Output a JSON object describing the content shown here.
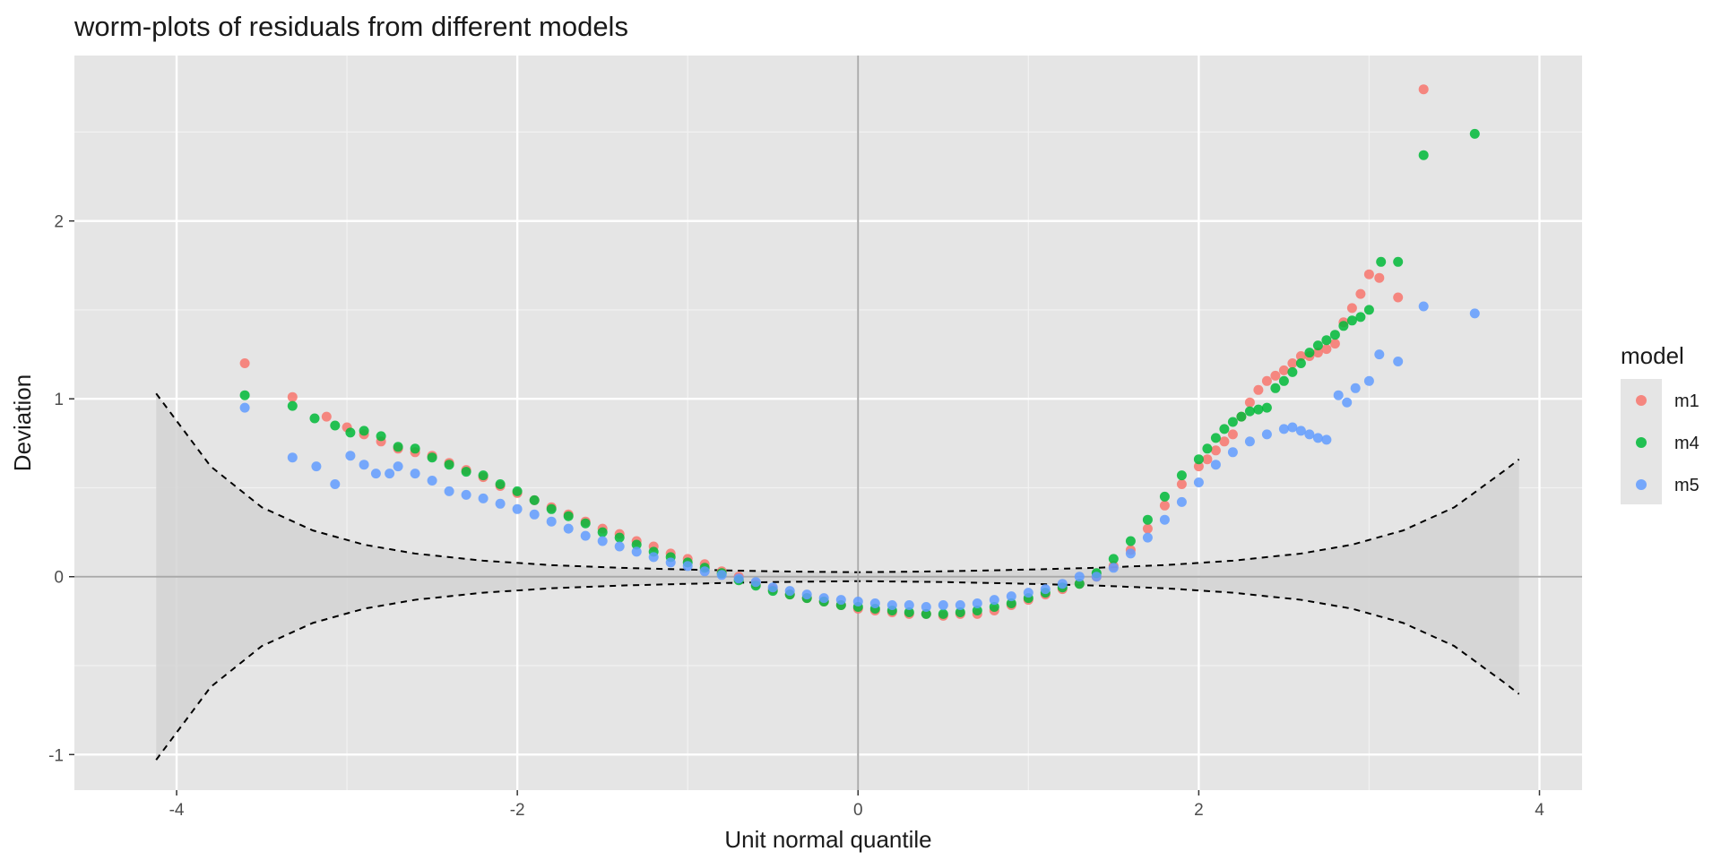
{
  "chart_data": {
    "type": "scatter",
    "title": "worm-plots of residuals from different models",
    "xlabel": "Unit normal quantile",
    "ylabel": "Deviation",
    "xlim": [
      -4.6,
      4.25
    ],
    "ylim": [
      -1.2,
      2.93
    ],
    "x_ticks": [
      -4,
      -2,
      0,
      2,
      4
    ],
    "y_ticks": [
      -1,
      0,
      1,
      2
    ],
    "grid": true,
    "legend": {
      "title": "model",
      "placement": "right"
    },
    "reference_lines": {
      "x": 0,
      "y": 0
    },
    "confidence_band": {
      "style": "dashed",
      "x": [
        -4.12,
        -3.8,
        -3.5,
        -3.2,
        -2.9,
        -2.6,
        -2.2,
        -1.8,
        -1.4,
        -1.0,
        -0.5,
        0,
        0.5,
        1.0,
        1.4,
        1.8,
        2.2,
        2.6,
        2.9,
        3.2,
        3.5,
        3.8,
        3.88
      ],
      "upper": [
        1.03,
        0.62,
        0.39,
        0.26,
        0.18,
        0.13,
        0.09,
        0.065,
        0.05,
        0.04,
        0.03,
        0.025,
        0.03,
        0.04,
        0.05,
        0.065,
        0.09,
        0.13,
        0.18,
        0.26,
        0.39,
        0.6,
        0.66
      ],
      "lower": [
        -1.03,
        -0.62,
        -0.39,
        -0.26,
        -0.18,
        -0.13,
        -0.09,
        -0.065,
        -0.05,
        -0.04,
        -0.03,
        -0.025,
        -0.03,
        -0.04,
        -0.05,
        -0.065,
        -0.09,
        -0.13,
        -0.18,
        -0.26,
        -0.39,
        -0.6,
        -0.66
      ]
    },
    "series": [
      {
        "name": "m1",
        "color": "#F8766D",
        "x": [
          -3.6,
          -3.32,
          -3.12,
          -3.0,
          -2.9,
          -2.8,
          -2.7,
          -2.6,
          -2.5,
          -2.4,
          -2.3,
          -2.2,
          -2.1,
          -2.0,
          -1.9,
          -1.8,
          -1.7,
          -1.6,
          -1.5,
          -1.4,
          -1.3,
          -1.2,
          -1.1,
          -1.0,
          -0.9,
          -0.8,
          -0.7,
          -0.6,
          -0.5,
          -0.4,
          -0.3,
          -0.2,
          -0.1,
          0.0,
          0.1,
          0.2,
          0.3,
          0.4,
          0.5,
          0.6,
          0.7,
          0.8,
          0.9,
          1.0,
          1.1,
          1.2,
          1.3,
          1.4,
          1.5,
          1.6,
          1.7,
          1.8,
          1.9,
          2.0,
          2.05,
          2.1,
          2.15,
          2.2,
          2.25,
          2.3,
          2.35,
          2.4,
          2.45,
          2.5,
          2.55,
          2.6,
          2.65,
          2.7,
          2.75,
          2.8,
          2.85,
          2.9,
          2.95,
          3.0,
          3.06,
          3.17,
          3.32
        ],
        "y": [
          1.2,
          1.01,
          0.9,
          0.84,
          0.8,
          0.76,
          0.72,
          0.7,
          0.68,
          0.64,
          0.6,
          0.56,
          0.51,
          0.47,
          0.43,
          0.39,
          0.35,
          0.31,
          0.27,
          0.24,
          0.2,
          0.17,
          0.13,
          0.1,
          0.07,
          0.03,
          0.0,
          -0.04,
          -0.07,
          -0.1,
          -0.12,
          -0.14,
          -0.16,
          -0.18,
          -0.19,
          -0.2,
          -0.21,
          -0.21,
          -0.22,
          -0.21,
          -0.21,
          -0.19,
          -0.16,
          -0.13,
          -0.1,
          -0.07,
          -0.04,
          0.0,
          0.06,
          0.15,
          0.27,
          0.4,
          0.52,
          0.62,
          0.66,
          0.71,
          0.76,
          0.8,
          0.9,
          0.98,
          1.05,
          1.1,
          1.13,
          1.16,
          1.2,
          1.24,
          1.24,
          1.26,
          1.28,
          1.31,
          1.43,
          1.51,
          1.59,
          1.7,
          1.68,
          1.57,
          2.74
        ]
      },
      {
        "name": "m4",
        "color": "#00BA38",
        "x": [
          -3.6,
          -3.32,
          -3.19,
          -3.07,
          -2.98,
          -2.9,
          -2.8,
          -2.7,
          -2.6,
          -2.5,
          -2.4,
          -2.3,
          -2.2,
          -2.1,
          -2.0,
          -1.9,
          -1.8,
          -1.7,
          -1.6,
          -1.5,
          -1.4,
          -1.3,
          -1.2,
          -1.1,
          -1.0,
          -0.9,
          -0.8,
          -0.7,
          -0.6,
          -0.5,
          -0.4,
          -0.3,
          -0.2,
          -0.1,
          0.0,
          0.1,
          0.2,
          0.3,
          0.4,
          0.5,
          0.6,
          0.7,
          0.8,
          0.9,
          1.0,
          1.1,
          1.2,
          1.3,
          1.4,
          1.5,
          1.6,
          1.7,
          1.8,
          1.9,
          2.0,
          2.05,
          2.1,
          2.15,
          2.2,
          2.25,
          2.3,
          2.35,
          2.4,
          2.45,
          2.5,
          2.55,
          2.6,
          2.65,
          2.7,
          2.75,
          2.8,
          2.85,
          2.9,
          2.95,
          3.0,
          3.07,
          3.17,
          3.32,
          3.62
        ],
        "y": [
          1.02,
          0.96,
          0.89,
          0.85,
          0.81,
          0.82,
          0.79,
          0.73,
          0.72,
          0.67,
          0.63,
          0.59,
          0.57,
          0.52,
          0.48,
          0.43,
          0.38,
          0.34,
          0.3,
          0.25,
          0.22,
          0.18,
          0.14,
          0.11,
          0.08,
          0.05,
          0.02,
          -0.02,
          -0.05,
          -0.08,
          -0.1,
          -0.12,
          -0.14,
          -0.16,
          -0.17,
          -0.18,
          -0.19,
          -0.2,
          -0.21,
          -0.21,
          -0.2,
          -0.19,
          -0.17,
          -0.15,
          -0.12,
          -0.09,
          -0.06,
          -0.04,
          0.02,
          0.1,
          0.2,
          0.32,
          0.45,
          0.57,
          0.66,
          0.72,
          0.78,
          0.83,
          0.87,
          0.9,
          0.93,
          0.94,
          0.95,
          1.06,
          1.1,
          1.15,
          1.2,
          1.26,
          1.3,
          1.33,
          1.36,
          1.41,
          1.44,
          1.46,
          1.5,
          1.77,
          1.77,
          2.37,
          2.49
        ]
      },
      {
        "name": "m5",
        "color": "#619CFF",
        "x": [
          -3.6,
          -3.32,
          -3.18,
          -3.07,
          -2.98,
          -2.9,
          -2.83,
          -2.75,
          -2.7,
          -2.6,
          -2.5,
          -2.4,
          -2.3,
          -2.2,
          -2.1,
          -2.0,
          -1.9,
          -1.8,
          -1.7,
          -1.6,
          -1.5,
          -1.4,
          -1.3,
          -1.2,
          -1.1,
          -1.0,
          -0.9,
          -0.8,
          -0.7,
          -0.6,
          -0.5,
          -0.4,
          -0.3,
          -0.2,
          -0.1,
          0.0,
          0.1,
          0.2,
          0.3,
          0.4,
          0.5,
          0.6,
          0.7,
          0.8,
          0.9,
          1.0,
          1.1,
          1.2,
          1.3,
          1.4,
          1.5,
          1.6,
          1.7,
          1.8,
          1.9,
          2.0,
          2.1,
          2.2,
          2.3,
          2.4,
          2.5,
          2.55,
          2.6,
          2.65,
          2.7,
          2.75,
          2.82,
          2.87,
          2.92,
          3.0,
          3.06,
          3.17,
          3.32,
          3.62
        ],
        "y": [
          0.95,
          0.67,
          0.62,
          0.52,
          0.68,
          0.63,
          0.58,
          0.58,
          0.62,
          0.58,
          0.54,
          0.48,
          0.46,
          0.44,
          0.41,
          0.38,
          0.35,
          0.31,
          0.27,
          0.23,
          0.2,
          0.17,
          0.14,
          0.11,
          0.08,
          0.06,
          0.03,
          0.01,
          -0.01,
          -0.03,
          -0.06,
          -0.08,
          -0.1,
          -0.12,
          -0.13,
          -0.14,
          -0.15,
          -0.16,
          -0.16,
          -0.17,
          -0.16,
          -0.16,
          -0.15,
          -0.13,
          -0.11,
          -0.09,
          -0.07,
          -0.04,
          0.0,
          0.0,
          0.05,
          0.13,
          0.22,
          0.32,
          0.42,
          0.53,
          0.63,
          0.7,
          0.76,
          0.8,
          0.83,
          0.84,
          0.82,
          0.8,
          0.78,
          0.77,
          1.02,
          0.98,
          1.06,
          1.1,
          1.25,
          1.21,
          1.52,
          1.48
        ]
      }
    ]
  }
}
